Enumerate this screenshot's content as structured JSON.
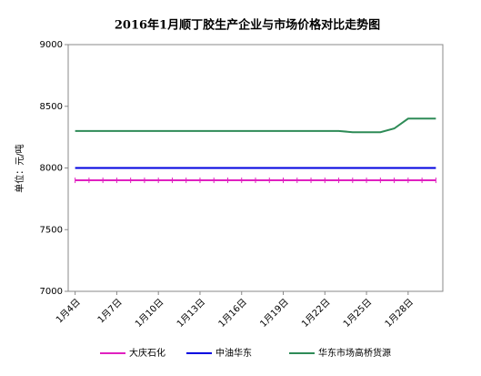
{
  "chart_data": {
    "type": "line",
    "title": "2016年1月顺丁胶生产企业与市场价格对比走势图",
    "y_label": "单位：元/吨",
    "categories": [
      "1月4日",
      null,
      null,
      "1月7日",
      null,
      null,
      "1月10日",
      null,
      null,
      "1月13日",
      null,
      null,
      "1月16日",
      null,
      null,
      "1月19日",
      null,
      null,
      "1月22日",
      null,
      null,
      "1月25日",
      null,
      null,
      "1月28日",
      null,
      null
    ],
    "series": [
      {
        "name": "大庆石化",
        "color": "#e020c0",
        "values": [
          7900,
          7900,
          7900,
          7900,
          7900,
          7900,
          7900,
          7900,
          7900,
          7900,
          7900,
          7900,
          7900,
          7900,
          7900,
          7900,
          7900,
          7900,
          7900,
          7900,
          7900,
          7900,
          7900,
          7900,
          7900,
          7900,
          7900
        ]
      },
      {
        "name": "中油华东",
        "color": "#0000e0",
        "values": [
          8000,
          8000,
          8000,
          8000,
          8000,
          8000,
          8000,
          8000,
          8000,
          8000,
          8000,
          8000,
          8000,
          8000,
          8000,
          8000,
          8000,
          8000,
          8000,
          8000,
          8000,
          8000,
          8000,
          8000,
          8000,
          8000,
          8000
        ]
      },
      {
        "name": "华东市场高桥货源",
        "color": "#2e8b57",
        "values": [
          8300,
          8300,
          8300,
          8300,
          8300,
          8300,
          8300,
          8300,
          8300,
          8300,
          8300,
          8300,
          8300,
          8300,
          8300,
          8300,
          8300,
          8300,
          8300,
          8300,
          8290,
          8290,
          8290,
          8320,
          8400,
          8400,
          8400
        ]
      }
    ],
    "ylim": [
      7000,
      9000
    ],
    "yticks": [
      7000,
      7500,
      8000,
      8500,
      9000
    ],
    "grid": false
  }
}
